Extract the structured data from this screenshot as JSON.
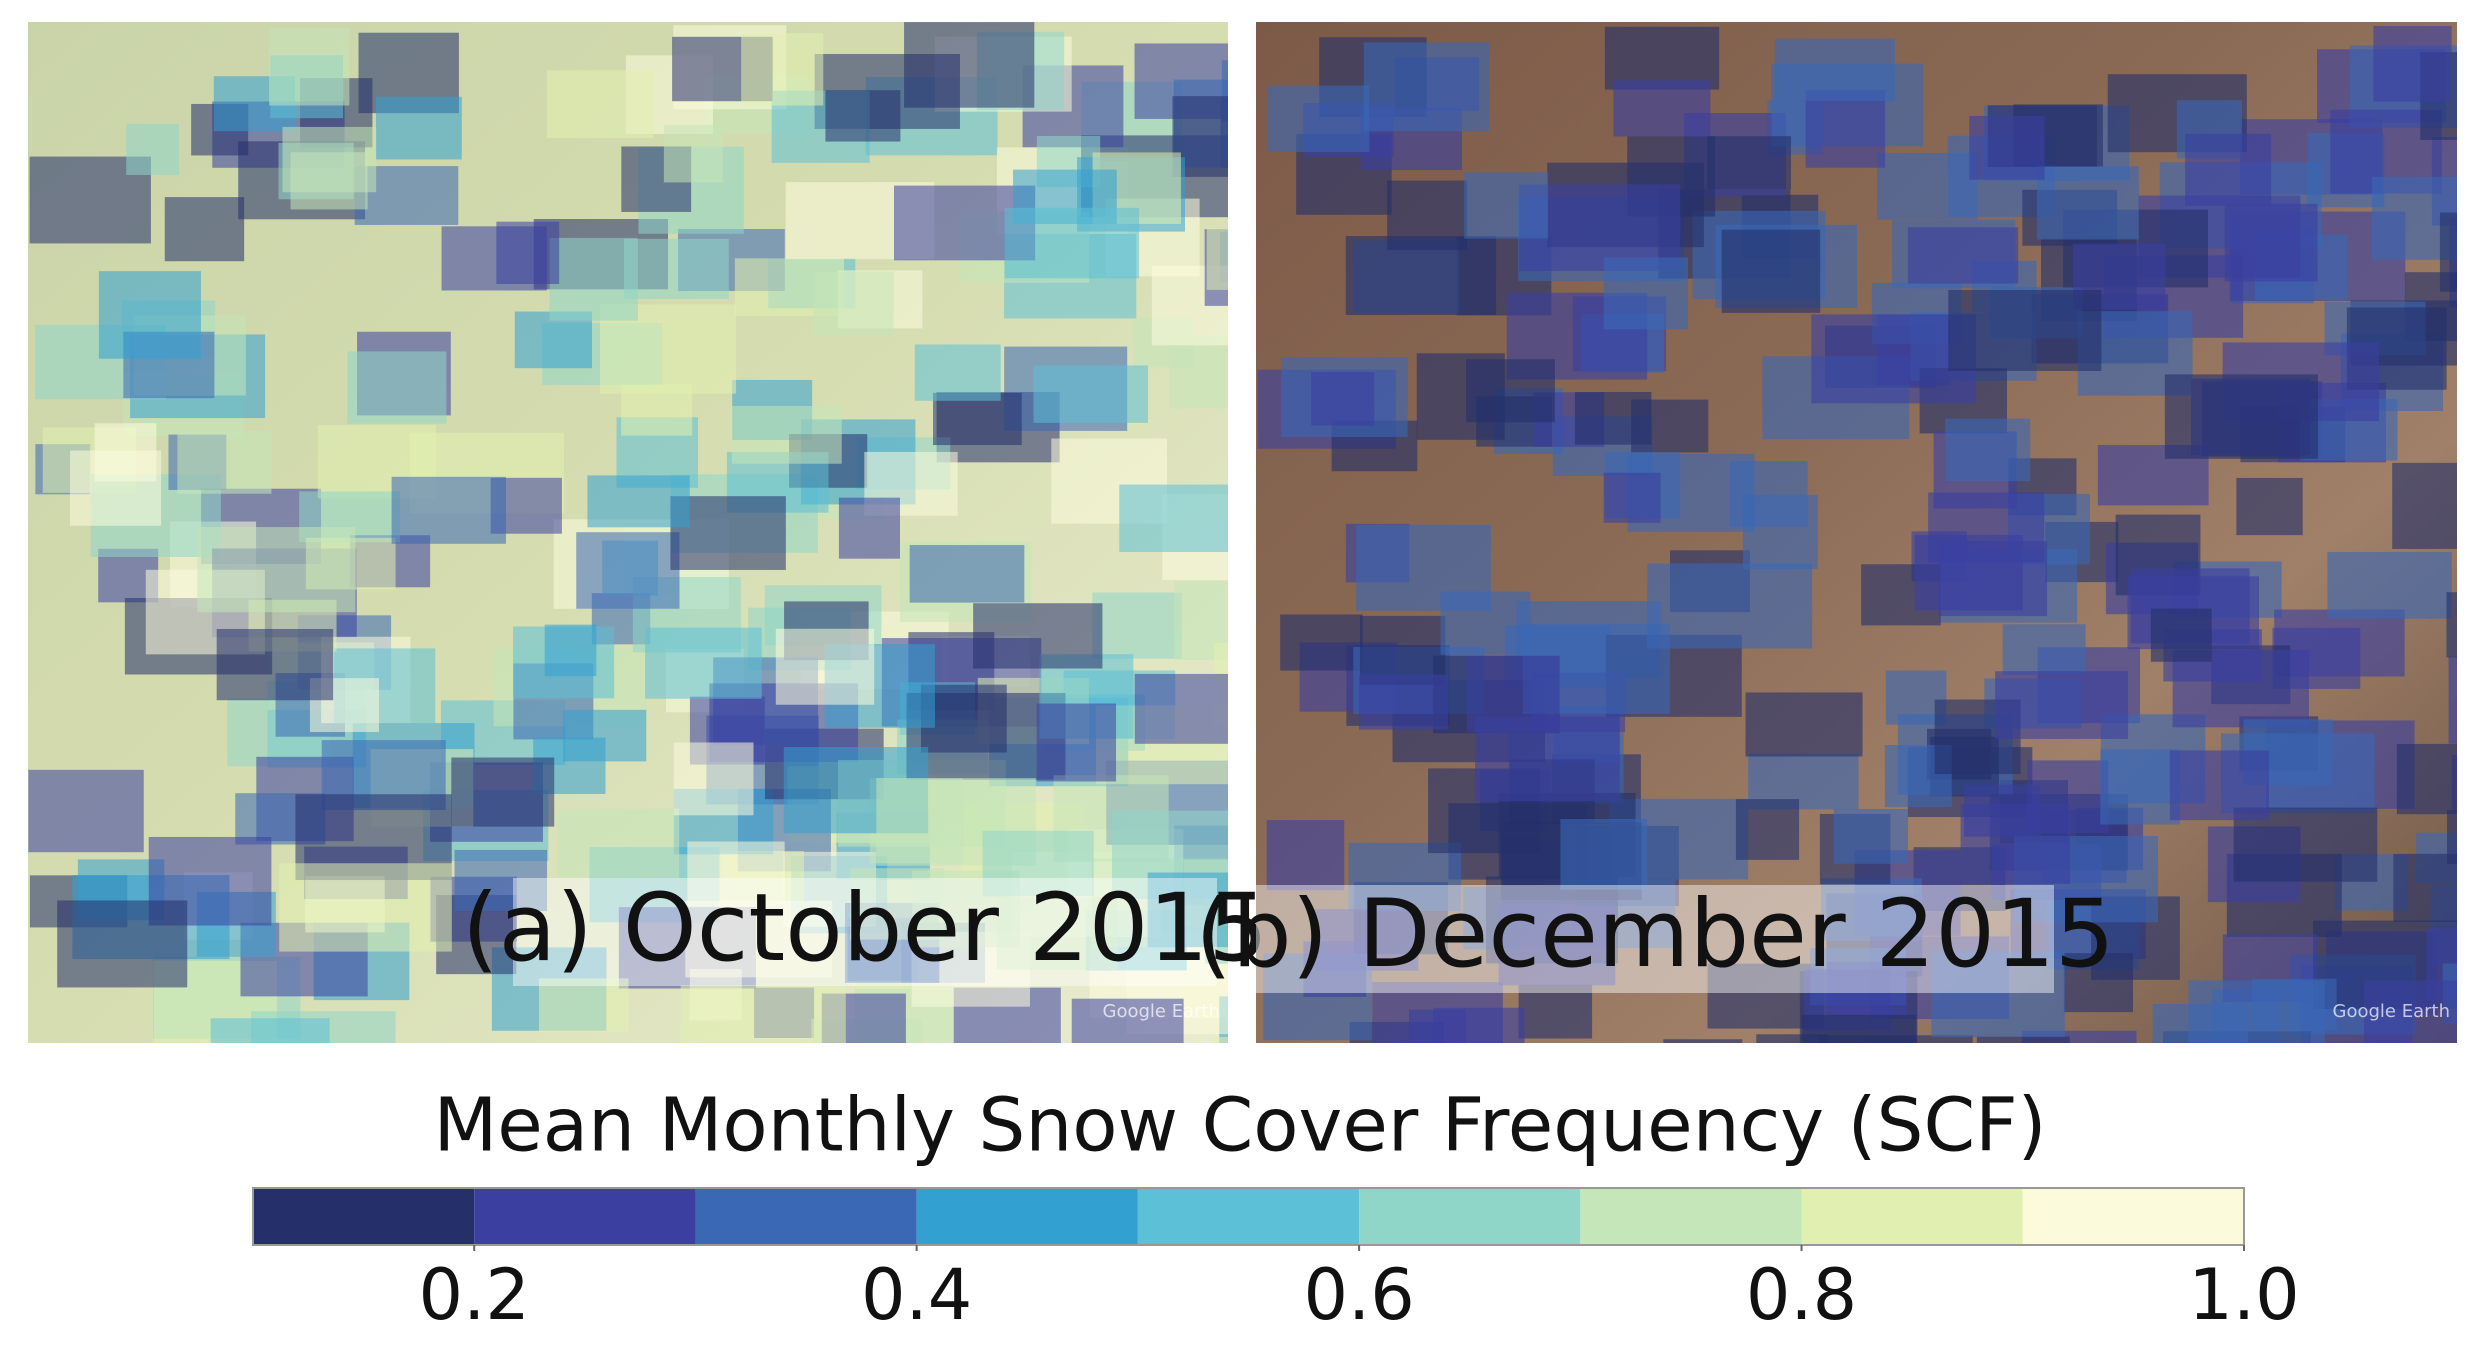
{
  "panels": [
    {
      "label": "(a) October 2015",
      "watermark": "Google Earth"
    },
    {
      "label": "(b) December 2015",
      "watermark": "Google Earth"
    }
  ],
  "colorbar": {
    "title": "Mean Monthly Snow Cover Frequency (SCF)",
    "lim": [
      0.1,
      1.0
    ],
    "bins": [
      0.1,
      0.2,
      0.3,
      0.4,
      0.5,
      0.6,
      0.7,
      0.8,
      0.9,
      1.0
    ],
    "colors": [
      "#25306b",
      "#3b3fa0",
      "#3a68b5",
      "#33a0d2",
      "#5cc0d6",
      "#8fd6c8",
      "#c4e6b8",
      "#e1f0b0",
      "#fbfbdc"
    ],
    "ticks": [
      0.2,
      0.4,
      0.6,
      0.8,
      {
        "value": 1.0,
        "label": "1.0"
      }
    ]
  }
}
